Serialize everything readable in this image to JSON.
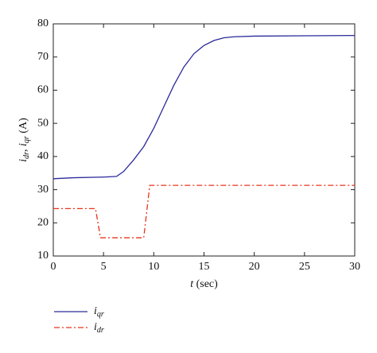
{
  "chart_data": {
    "type": "line",
    "xlabel": [
      "t",
      " (sec)"
    ],
    "ylabel": [
      "i",
      "dr",
      ", ",
      "i",
      "qr",
      " (A)"
    ],
    "xlim": [
      0,
      30
    ],
    "xticks": [
      0,
      5,
      10,
      15,
      20,
      25,
      30
    ],
    "ylim": [
      10,
      80
    ],
    "yticks": [
      10,
      20,
      30,
      40,
      50,
      60,
      70,
      80
    ],
    "legend": "below-left",
    "series": [
      {
        "name": "iqr",
        "color": "#2a2a9a",
        "dash": "solid",
        "x": [
          0,
          2,
          5,
          6.3,
          7,
          8,
          9,
          10,
          11,
          12,
          13,
          14,
          15,
          16,
          17,
          18,
          20,
          25,
          30
        ],
        "values": [
          33.3,
          33.6,
          33.8,
          34,
          35.5,
          39,
          43,
          48.5,
          55,
          61.5,
          67,
          71,
          73.5,
          75,
          75.8,
          76.1,
          76.3,
          76.4,
          76.5
        ]
      },
      {
        "name": "idr",
        "color": "#e8341c",
        "dash": "dashdot",
        "x": [
          0,
          4.2,
          4.7,
          9.0,
          9.6,
          30
        ],
        "values": [
          24.3,
          24.3,
          15.5,
          15.5,
          31.3,
          31.3
        ]
      }
    ]
  }
}
